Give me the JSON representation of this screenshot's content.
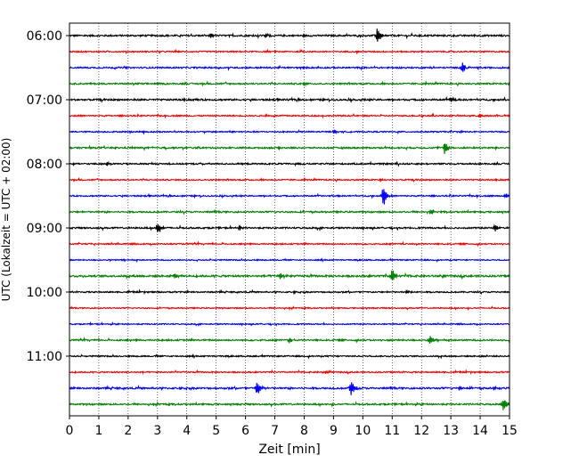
{
  "chart_data": {
    "type": "line",
    "title": "",
    "xlabel": "Zeit  [min]",
    "ylabel": "UTC (Lokalzeit = UTC + 02:00)",
    "xlim": [
      0,
      15
    ],
    "x_ticks": [
      "0",
      "1",
      "2",
      "3",
      "4",
      "5",
      "6",
      "7",
      "8",
      "9",
      "10",
      "11",
      "12",
      "13",
      "14",
      "15"
    ],
    "y_tick_labels": [
      "06:00",
      "07:00",
      "08:00",
      "09:00",
      "10:00",
      "11:00"
    ],
    "grid": "vertical dotted lines at each minute",
    "trace_interval_minutes": 15,
    "trace_colors": [
      "#000000",
      "#ff0000",
      "#0000ff",
      "#008000"
    ],
    "series": [
      {
        "start": "06:00",
        "color": "#000000",
        "noise": 0.9,
        "events": [
          {
            "t": 10.5,
            "amp": 11
          },
          {
            "t": 4.8,
            "amp": 3
          },
          {
            "t": 6.7,
            "amp": 2.5
          }
        ]
      },
      {
        "start": "06:15",
        "color": "#ff0000",
        "noise": 0.7,
        "events": []
      },
      {
        "start": "06:30",
        "color": "#0000ff",
        "noise": 0.8,
        "events": [
          {
            "t": 13.4,
            "amp": 8
          }
        ]
      },
      {
        "start": "06:45",
        "color": "#008000",
        "noise": 0.8,
        "events": [
          {
            "t": 8.0,
            "amp": 2.5
          }
        ]
      },
      {
        "start": "07:00",
        "color": "#000000",
        "noise": 0.9,
        "events": [
          {
            "t": 13.0,
            "amp": 3.5
          }
        ]
      },
      {
        "start": "07:15",
        "color": "#ff0000",
        "noise": 0.7,
        "events": [
          {
            "t": 14.0,
            "amp": 3
          }
        ]
      },
      {
        "start": "07:30",
        "color": "#0000ff",
        "noise": 0.7,
        "events": [
          {
            "t": 9.0,
            "amp": 2.5
          }
        ]
      },
      {
        "start": "07:45",
        "color": "#008000",
        "noise": 0.8,
        "events": [
          {
            "t": 12.8,
            "amp": 9
          }
        ]
      },
      {
        "start": "08:00",
        "color": "#000000",
        "noise": 0.8,
        "events": [
          {
            "t": 1.3,
            "amp": 2.5
          }
        ]
      },
      {
        "start": "08:15",
        "color": "#ff0000",
        "noise": 0.7,
        "events": [
          {
            "t": 10.6,
            "amp": 2.5
          }
        ]
      },
      {
        "start": "08:30",
        "color": "#0000ff",
        "noise": 0.7,
        "events": [
          {
            "t": 10.7,
            "amp": 15
          },
          {
            "t": 14.9,
            "amp": 3
          }
        ]
      },
      {
        "start": "08:45",
        "color": "#008000",
        "noise": 0.8,
        "events": [
          {
            "t": 12.3,
            "amp": 3
          }
        ]
      },
      {
        "start": "09:00",
        "color": "#000000",
        "noise": 0.8,
        "events": [
          {
            "t": 3.0,
            "amp": 7
          },
          {
            "t": 14.5,
            "amp": 5
          },
          {
            "t": 5.8,
            "amp": 3
          }
        ]
      },
      {
        "start": "09:15",
        "color": "#ff0000",
        "noise": 0.7,
        "events": []
      },
      {
        "start": "09:30",
        "color": "#0000ff",
        "noise": 0.6,
        "events": []
      },
      {
        "start": "09:45",
        "color": "#008000",
        "noise": 1.0,
        "events": [
          {
            "t": 11.0,
            "amp": 9
          },
          {
            "t": 7.2,
            "amp": 4
          },
          {
            "t": 3.6,
            "amp": 3
          }
        ]
      },
      {
        "start": "10:00",
        "color": "#000000",
        "noise": 0.7,
        "events": [
          {
            "t": 11.5,
            "amp": 3
          }
        ]
      },
      {
        "start": "10:15",
        "color": "#ff0000",
        "noise": 0.6,
        "events": []
      },
      {
        "start": "10:30",
        "color": "#0000ff",
        "noise": 0.6,
        "events": []
      },
      {
        "start": "10:45",
        "color": "#008000",
        "noise": 0.8,
        "events": [
          {
            "t": 12.3,
            "amp": 6
          },
          {
            "t": 7.5,
            "amp": 3
          }
        ]
      },
      {
        "start": "11:00",
        "color": "#000000",
        "noise": 0.7,
        "events": []
      },
      {
        "start": "11:15",
        "color": "#ff0000",
        "noise": 0.7,
        "events": [
          {
            "t": 8.7,
            "amp": 2
          }
        ]
      },
      {
        "start": "11:30",
        "color": "#0000ff",
        "noise": 0.9,
        "events": [
          {
            "t": 6.4,
            "amp": 10
          },
          {
            "t": 9.6,
            "amp": 11
          },
          {
            "t": 13.3,
            "amp": 3
          },
          {
            "t": 14.5,
            "amp": 2.5
          }
        ]
      },
      {
        "start": "11:45",
        "color": "#008000",
        "noise": 0.8,
        "events": [
          {
            "t": 14.8,
            "amp": 9
          }
        ]
      }
    ]
  }
}
